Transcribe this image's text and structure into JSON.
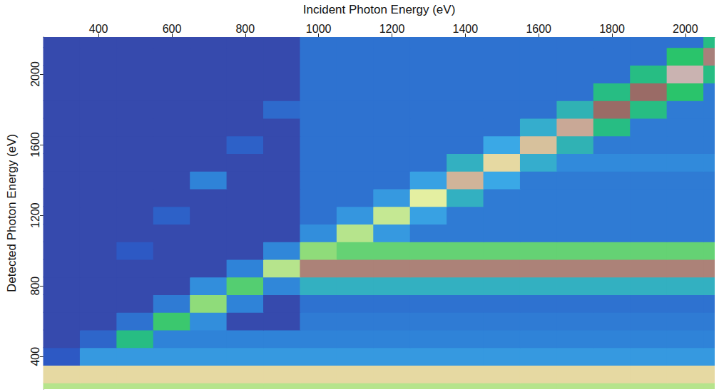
{
  "chart_data": {
    "type": "heatmap",
    "x_label": "Incident Photon Energy (eV)",
    "y_label": "Detected Photon Energy (eV)",
    "xlim": [
      250,
      2080
    ],
    "xticks": [
      400,
      600,
      800,
      1000,
      1200,
      1400,
      1600,
      1800,
      2000
    ],
    "ylim": [
      215,
      2210
    ],
    "yticks": [
      400,
      800,
      1200,
      1600,
      2000
    ],
    "grid": false,
    "x": [
      300,
      400,
      500,
      600,
      700,
      800,
      900,
      1000,
      1100,
      1200,
      1300,
      1400,
      1500,
      1600,
      1700,
      1800,
      1900,
      2000,
      2100
    ],
    "y": [
      200,
      300,
      400,
      500,
      600,
      700,
      800,
      900,
      1000,
      1100,
      1200,
      1300,
      1400,
      1500,
      1600,
      1700,
      1800,
      1900,
      2000,
      2100,
      2200
    ],
    "z": [
      [
        60,
        60,
        60,
        60,
        60,
        60,
        60,
        60,
        60,
        60,
        60,
        60,
        60,
        60,
        60,
        60,
        60,
        60,
        60
      ],
      [
        72,
        72,
        72,
        72,
        72,
        72,
        72,
        72,
        72,
        72,
        72,
        72,
        72,
        72,
        72,
        72,
        72,
        72,
        72
      ],
      [
        12,
        28,
        28,
        28,
        28,
        28,
        28,
        28,
        28,
        28,
        28,
        28,
        28,
        28,
        28,
        28,
        28,
        28,
        28
      ],
      [
        5,
        15,
        40,
        22,
        22,
        22,
        22,
        22,
        22,
        22,
        22,
        22,
        22,
        22,
        22,
        22,
        22,
        22,
        22
      ],
      [
        5,
        5,
        18,
        45,
        25,
        5,
        5,
        20,
        20,
        20,
        20,
        20,
        20,
        20,
        20,
        20,
        20,
        20,
        20
      ],
      [
        5,
        5,
        5,
        20,
        55,
        22,
        5,
        18,
        18,
        18,
        18,
        18,
        18,
        18,
        18,
        18,
        18,
        18,
        18
      ],
      [
        5,
        5,
        5,
        5,
        25,
        48,
        23,
        35,
        35,
        35,
        35,
        35,
        35,
        35,
        35,
        35,
        35,
        35,
        35
      ],
      [
        5,
        5,
        5,
        5,
        5,
        22,
        60,
        85,
        85,
        85,
        85,
        85,
        85,
        85,
        85,
        85,
        85,
        85,
        85
      ],
      [
        5,
        5,
        12,
        5,
        5,
        5,
        23,
        55,
        50,
        50,
        50,
        50,
        50,
        50,
        50,
        50,
        50,
        50,
        50
      ],
      [
        5,
        5,
        5,
        5,
        5,
        5,
        5,
        25,
        60,
        28,
        20,
        20,
        20,
        20,
        20,
        20,
        20,
        20,
        20
      ],
      [
        5,
        5,
        5,
        14,
        5,
        5,
        5,
        18,
        27,
        62,
        30,
        20,
        20,
        20,
        20,
        20,
        20,
        20,
        20
      ],
      [
        5,
        5,
        5,
        5,
        5,
        5,
        5,
        18,
        18,
        28,
        66,
        35,
        20,
        20,
        20,
        20,
        20,
        20,
        20
      ],
      [
        5,
        5,
        5,
        5,
        22,
        5,
        5,
        18,
        18,
        18,
        30,
        78,
        32,
        20,
        20,
        20,
        20,
        20,
        20
      ],
      [
        5,
        5,
        5,
        5,
        5,
        5,
        5,
        18,
        18,
        18,
        18,
        35,
        72,
        34,
        24,
        24,
        24,
        24,
        24
      ],
      [
        5,
        5,
        5,
        5,
        5,
        14,
        5,
        18,
        18,
        18,
        18,
        18,
        32,
        76,
        36,
        20,
        20,
        20,
        20
      ],
      [
        5,
        5,
        5,
        5,
        5,
        5,
        5,
        18,
        18,
        18,
        18,
        18,
        18,
        34,
        80,
        40,
        20,
        20,
        20
      ],
      [
        5,
        5,
        5,
        5,
        5,
        5,
        16,
        18,
        18,
        18,
        18,
        18,
        18,
        18,
        36,
        88,
        40,
        20,
        20
      ],
      [
        5,
        5,
        5,
        5,
        5,
        5,
        5,
        18,
        18,
        18,
        18,
        18,
        18,
        18,
        18,
        40,
        88,
        43,
        20
      ],
      [
        5,
        5,
        5,
        5,
        5,
        5,
        5,
        18,
        18,
        18,
        18,
        18,
        18,
        18,
        18,
        18,
        40,
        95,
        40
      ],
      [
        5,
        5,
        5,
        5,
        5,
        5,
        5,
        18,
        18,
        18,
        18,
        18,
        18,
        18,
        18,
        18,
        18,
        43,
        90
      ],
      [
        5,
        5,
        5,
        5,
        5,
        5,
        5,
        18,
        18,
        18,
        18,
        18,
        18,
        18,
        18,
        18,
        18,
        18,
        40
      ]
    ],
    "color_scale": {
      "min": 0,
      "max": 100,
      "stops": [
        {
          "value": 0,
          "color": "#3c3f9c"
        },
        {
          "value": 12,
          "color": "#2d59c4"
        },
        {
          "value": 22,
          "color": "#2f83d8"
        },
        {
          "value": 32,
          "color": "#3aa8e6"
        },
        {
          "value": 42,
          "color": "#22c26a"
        },
        {
          "value": 55,
          "color": "#8fdc7a"
        },
        {
          "value": 68,
          "color": "#f4f2a8"
        },
        {
          "value": 80,
          "color": "#c9a896"
        },
        {
          "value": 88,
          "color": "#9a6b66"
        },
        {
          "value": 100,
          "color": "#ece6e6"
        }
      ]
    }
  }
}
